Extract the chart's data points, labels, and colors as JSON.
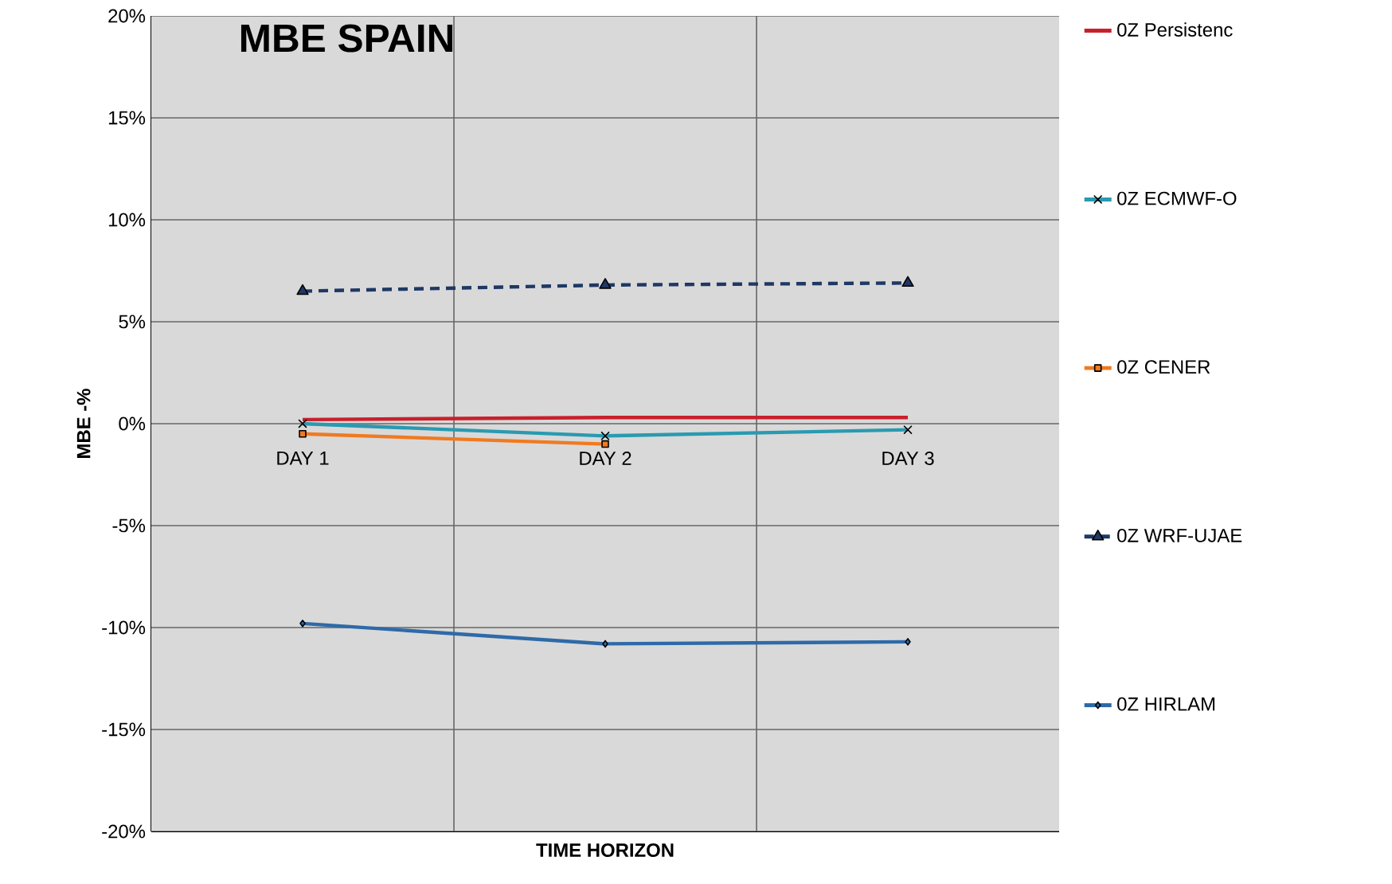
{
  "chart_data": {
    "type": "line",
    "title": "MBE SPAIN",
    "xlabel": "TIME HORIZON",
    "ylabel": "MBE -%",
    "categories": [
      "DAY 1",
      "DAY 2",
      "DAY 3"
    ],
    "ylim": [
      -20,
      20
    ],
    "yticks": [
      {
        "value": -20,
        "label": "-20%"
      },
      {
        "value": -15,
        "label": "-15%"
      },
      {
        "value": -10,
        "label": "-10%"
      },
      {
        "value": -5,
        "label": "-5%"
      },
      {
        "value": 0,
        "label": "0%"
      },
      {
        "value": 5,
        "label": "5%"
      },
      {
        "value": 10,
        "label": "10%"
      },
      {
        "value": 15,
        "label": "15%"
      },
      {
        "value": 20,
        "label": "20%"
      }
    ],
    "grid": true,
    "legend": "right",
    "series": [
      {
        "name": "0Z  Persistenc",
        "color": "#c8202c",
        "marker": "none",
        "values": [
          0.2,
          0.3,
          0.3
        ]
      },
      {
        "name": "0Z  ECMWF-O",
        "color": "#2a9ab0",
        "marker": "cross",
        "values": [
          0.0,
          -0.6,
          -0.3
        ]
      },
      {
        "name": "0Z  CENER",
        "color": "#f07a20",
        "marker": "square",
        "values": [
          -0.5,
          -1.0,
          null
        ]
      },
      {
        "name": "0Z  WRF-UJAE",
        "color": "#1f3864",
        "marker": "triangle",
        "line_style": "dashed",
        "values": [
          6.5,
          6.8,
          6.9
        ]
      },
      {
        "name": "0Z  HIRLAM",
        "color": "#2e6aa8",
        "marker": "diamond",
        "values": [
          -9.8,
          -10.8,
          -10.7
        ]
      }
    ]
  }
}
